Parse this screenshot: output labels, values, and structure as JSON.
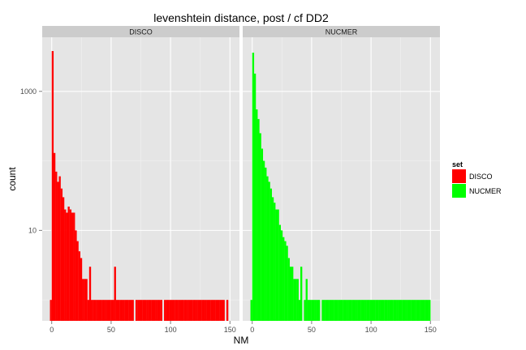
{
  "chart_data": {
    "type": "bar",
    "title": "levenshtein distance, post / cf DD2",
    "xlabel": "NM",
    "ylabel": "count",
    "y_scale": "log10",
    "ylim": [
      0.5,
      6000
    ],
    "xlim": [
      -8,
      158
    ],
    "x_ticks": [
      0,
      50,
      100,
      150
    ],
    "x_tick_labels": [
      "0",
      "50",
      "100",
      "150"
    ],
    "y_ticks": [
      10,
      1000
    ],
    "y_tick_labels": [
      "10",
      "1000"
    ],
    "bin_width": 1.5,
    "grid": true,
    "legend": {
      "title": "set",
      "position": "right",
      "entries": [
        {
          "label": "DISCO",
          "color": "#FF0000"
        },
        {
          "label": "NUCMER",
          "color": "#00FF00"
        }
      ]
    },
    "panels": [
      {
        "strip": "DISCO",
        "color": "#FF0000",
        "bins": [
          [
            -1.5,
            1
          ],
          [
            0,
            3800
          ],
          [
            1.5,
            130
          ],
          [
            3,
            70
          ],
          [
            4.5,
            50
          ],
          [
            6,
            60
          ],
          [
            7.5,
            40
          ],
          [
            9,
            30
          ],
          [
            10.5,
            20
          ],
          [
            12,
            18
          ],
          [
            13.5,
            22
          ],
          [
            15,
            20
          ],
          [
            16.5,
            18
          ],
          [
            18,
            18
          ],
          [
            19.5,
            10
          ],
          [
            21,
            7
          ],
          [
            22.5,
            5
          ],
          [
            24,
            4
          ],
          [
            25.5,
            2
          ],
          [
            27,
            2
          ],
          [
            28.5,
            2
          ],
          [
            30,
            1
          ],
          [
            31.5,
            3
          ],
          [
            33,
            1
          ],
          [
            34.5,
            1
          ],
          [
            36,
            1
          ],
          [
            37.5,
            1
          ],
          [
            39,
            1
          ],
          [
            40.5,
            1
          ],
          [
            42,
            1
          ],
          [
            43.5,
            1
          ],
          [
            45,
            1
          ],
          [
            46.5,
            1
          ],
          [
            48,
            1
          ],
          [
            49.5,
            1
          ],
          [
            51,
            1
          ],
          [
            52.5,
            3
          ],
          [
            54,
            1
          ],
          [
            55.5,
            1
          ],
          [
            57,
            1
          ],
          [
            58.5,
            1
          ],
          [
            60,
            1
          ],
          [
            61.5,
            1
          ],
          [
            63,
            1
          ],
          [
            64.5,
            1
          ],
          [
            66,
            1
          ],
          [
            67.5,
            1
          ],
          [
            70.5,
            1
          ],
          [
            72,
            1
          ],
          [
            73.5,
            1
          ],
          [
            75,
            1
          ],
          [
            76.5,
            1
          ],
          [
            78,
            1
          ],
          [
            79.5,
            1
          ],
          [
            81,
            1
          ],
          [
            82.5,
            1
          ],
          [
            84,
            1
          ],
          [
            85.5,
            1
          ],
          [
            87,
            1
          ],
          [
            88.5,
            1
          ],
          [
            90,
            1
          ],
          [
            91.5,
            1
          ],
          [
            94.5,
            1
          ],
          [
            96,
            1
          ],
          [
            97.5,
            1
          ],
          [
            99,
            1
          ],
          [
            100.5,
            1
          ],
          [
            102,
            1
          ],
          [
            103.5,
            1
          ],
          [
            105,
            1
          ],
          [
            106.5,
            1
          ],
          [
            108,
            1
          ],
          [
            109.5,
            1
          ],
          [
            111,
            1
          ],
          [
            112.5,
            1
          ],
          [
            114,
            1
          ],
          [
            115.5,
            1
          ],
          [
            117,
            1
          ],
          [
            118.5,
            1
          ],
          [
            120,
            1
          ],
          [
            121.5,
            1
          ],
          [
            123,
            1
          ],
          [
            124.5,
            1
          ],
          [
            126,
            1
          ],
          [
            127.5,
            1
          ],
          [
            129,
            1
          ],
          [
            130.5,
            1
          ],
          [
            132,
            1
          ],
          [
            133.5,
            1
          ],
          [
            135,
            1
          ],
          [
            136.5,
            1
          ],
          [
            138,
            1
          ],
          [
            139.5,
            1
          ],
          [
            141,
            1
          ],
          [
            142.5,
            1
          ],
          [
            144,
            1
          ],
          [
            147,
            1
          ]
        ]
      },
      {
        "strip": "NUCMER",
        "color": "#00FF00",
        "bins": [
          [
            -1.5,
            1
          ],
          [
            0,
            3600
          ],
          [
            1.5,
            1800
          ],
          [
            3,
            550
          ],
          [
            4.5,
            400
          ],
          [
            6,
            250
          ],
          [
            7.5,
            150
          ],
          [
            9,
            100
          ],
          [
            10.5,
            80
          ],
          [
            12,
            60
          ],
          [
            13.5,
            50
          ],
          [
            15,
            40
          ],
          [
            16.5,
            30
          ],
          [
            18,
            25
          ],
          [
            19.5,
            20
          ],
          [
            21,
            20
          ],
          [
            22.5,
            12
          ],
          [
            24,
            10
          ],
          [
            25.5,
            8
          ],
          [
            27,
            7
          ],
          [
            28.5,
            6
          ],
          [
            30,
            4
          ],
          [
            31.5,
            3
          ],
          [
            33,
            3
          ],
          [
            34.5,
            2
          ],
          [
            36,
            2
          ],
          [
            37.5,
            2
          ],
          [
            39,
            1
          ],
          [
            40.5,
            3
          ],
          [
            43.5,
            1
          ],
          [
            45,
            2
          ],
          [
            46.5,
            1
          ],
          [
            48,
            1
          ],
          [
            49.5,
            1
          ],
          [
            51,
            1
          ],
          [
            52.5,
            1
          ],
          [
            54,
            1
          ],
          [
            55.5,
            1
          ],
          [
            58.5,
            1
          ],
          [
            60,
            1
          ],
          [
            61.5,
            1
          ],
          [
            63,
            1
          ],
          [
            64.5,
            1
          ],
          [
            66,
            1
          ],
          [
            67.5,
            1
          ],
          [
            69,
            1
          ],
          [
            70.5,
            1
          ],
          [
            72,
            1
          ],
          [
            73.5,
            1
          ],
          [
            75,
            1
          ],
          [
            76.5,
            1
          ],
          [
            78,
            1
          ],
          [
            79.5,
            1
          ],
          [
            81,
            1
          ],
          [
            82.5,
            1
          ],
          [
            84,
            1
          ],
          [
            85.5,
            1
          ],
          [
            87,
            1
          ],
          [
            88.5,
            1
          ],
          [
            90,
            1
          ],
          [
            91.5,
            1
          ],
          [
            93,
            1
          ],
          [
            94.5,
            1
          ],
          [
            96,
            1
          ],
          [
            97.5,
            1
          ],
          [
            99,
            1
          ],
          [
            100.5,
            1
          ],
          [
            102,
            1
          ],
          [
            103.5,
            1
          ],
          [
            105,
            1
          ],
          [
            106.5,
            1
          ],
          [
            108,
            1
          ],
          [
            109.5,
            1
          ],
          [
            111,
            1
          ],
          [
            112.5,
            1
          ],
          [
            114,
            1
          ],
          [
            115.5,
            1
          ],
          [
            117,
            1
          ],
          [
            118.5,
            1
          ],
          [
            120,
            1
          ],
          [
            121.5,
            1
          ],
          [
            123,
            1
          ],
          [
            124.5,
            1
          ],
          [
            126,
            1
          ],
          [
            127.5,
            1
          ],
          [
            129,
            1
          ],
          [
            130.5,
            1
          ],
          [
            132,
            1
          ],
          [
            133.5,
            1
          ],
          [
            135,
            1
          ],
          [
            136.5,
            1
          ],
          [
            138,
            1
          ],
          [
            139.5,
            1
          ],
          [
            141,
            1
          ],
          [
            142.5,
            1
          ],
          [
            144,
            1
          ],
          [
            145.5,
            1
          ],
          [
            147,
            1
          ],
          [
            148.5,
            1
          ]
        ]
      }
    ]
  }
}
